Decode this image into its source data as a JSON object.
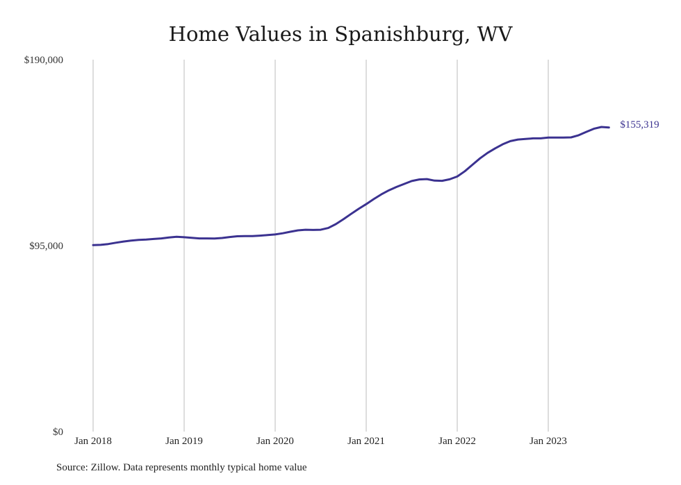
{
  "chart_data": {
    "type": "line",
    "title": "Home Values in Spanishburg, WV",
    "xlabel": "",
    "ylabel": "",
    "ylim": [
      0,
      190000
    ],
    "y_ticks": [
      "$0",
      "$95,000",
      "$190,000"
    ],
    "x_ticks": [
      "Jan 2018",
      "Jan 2019",
      "Jan 2020",
      "Jan 2021",
      "Jan 2022",
      "Jan 2023"
    ],
    "grid": "vertical",
    "line_color": "#3b3290",
    "series": [
      {
        "name": "",
        "x": [
          "2018-01",
          "2018-02",
          "2018-03",
          "2018-04",
          "2018-05",
          "2018-06",
          "2018-07",
          "2018-08",
          "2018-09",
          "2018-10",
          "2018-11",
          "2018-12",
          "2019-01",
          "2019-02",
          "2019-03",
          "2019-04",
          "2019-05",
          "2019-06",
          "2019-07",
          "2019-08",
          "2019-09",
          "2019-10",
          "2019-11",
          "2019-12",
          "2020-01",
          "2020-02",
          "2020-03",
          "2020-04",
          "2020-05",
          "2020-06",
          "2020-07",
          "2020-08",
          "2020-09",
          "2020-10",
          "2020-11",
          "2020-12",
          "2021-01",
          "2021-02",
          "2021-03",
          "2021-04",
          "2021-05",
          "2021-06",
          "2021-07",
          "2021-08",
          "2021-09",
          "2021-10",
          "2021-11",
          "2021-12",
          "2022-01",
          "2022-02",
          "2022-03",
          "2022-04",
          "2022-05",
          "2022-06",
          "2022-07",
          "2022-08",
          "2022-09",
          "2022-10",
          "2022-11",
          "2022-12",
          "2023-01",
          "2023-02",
          "2023-03",
          "2023-04",
          "2023-05",
          "2023-06",
          "2023-07",
          "2023-08",
          "2023-09"
        ],
        "values": [
          95300,
          95400,
          95800,
          96500,
          97100,
          97600,
          97900,
          98100,
          98400,
          98700,
          99200,
          99500,
          99300,
          99000,
          98700,
          98700,
          98600,
          98900,
          99400,
          99800,
          99900,
          99900,
          100100,
          100400,
          100700,
          101300,
          102100,
          102800,
          103100,
          103000,
          103100,
          104000,
          106000,
          108500,
          111200,
          113800,
          116200,
          118800,
          121200,
          123300,
          125000,
          126500,
          128000,
          128800,
          129000,
          128200,
          128100,
          128900,
          130300,
          133000,
          136300,
          139600,
          142400,
          144700,
          146800,
          148400,
          149200,
          149500,
          149800,
          149800,
          150200,
          150200,
          150200,
          150300,
          151400,
          153100,
          154700,
          155600,
          155319
        ]
      }
    ],
    "end_label": "$155,319"
  },
  "source": "Source: Zillow. Data represents monthly typical home value"
}
